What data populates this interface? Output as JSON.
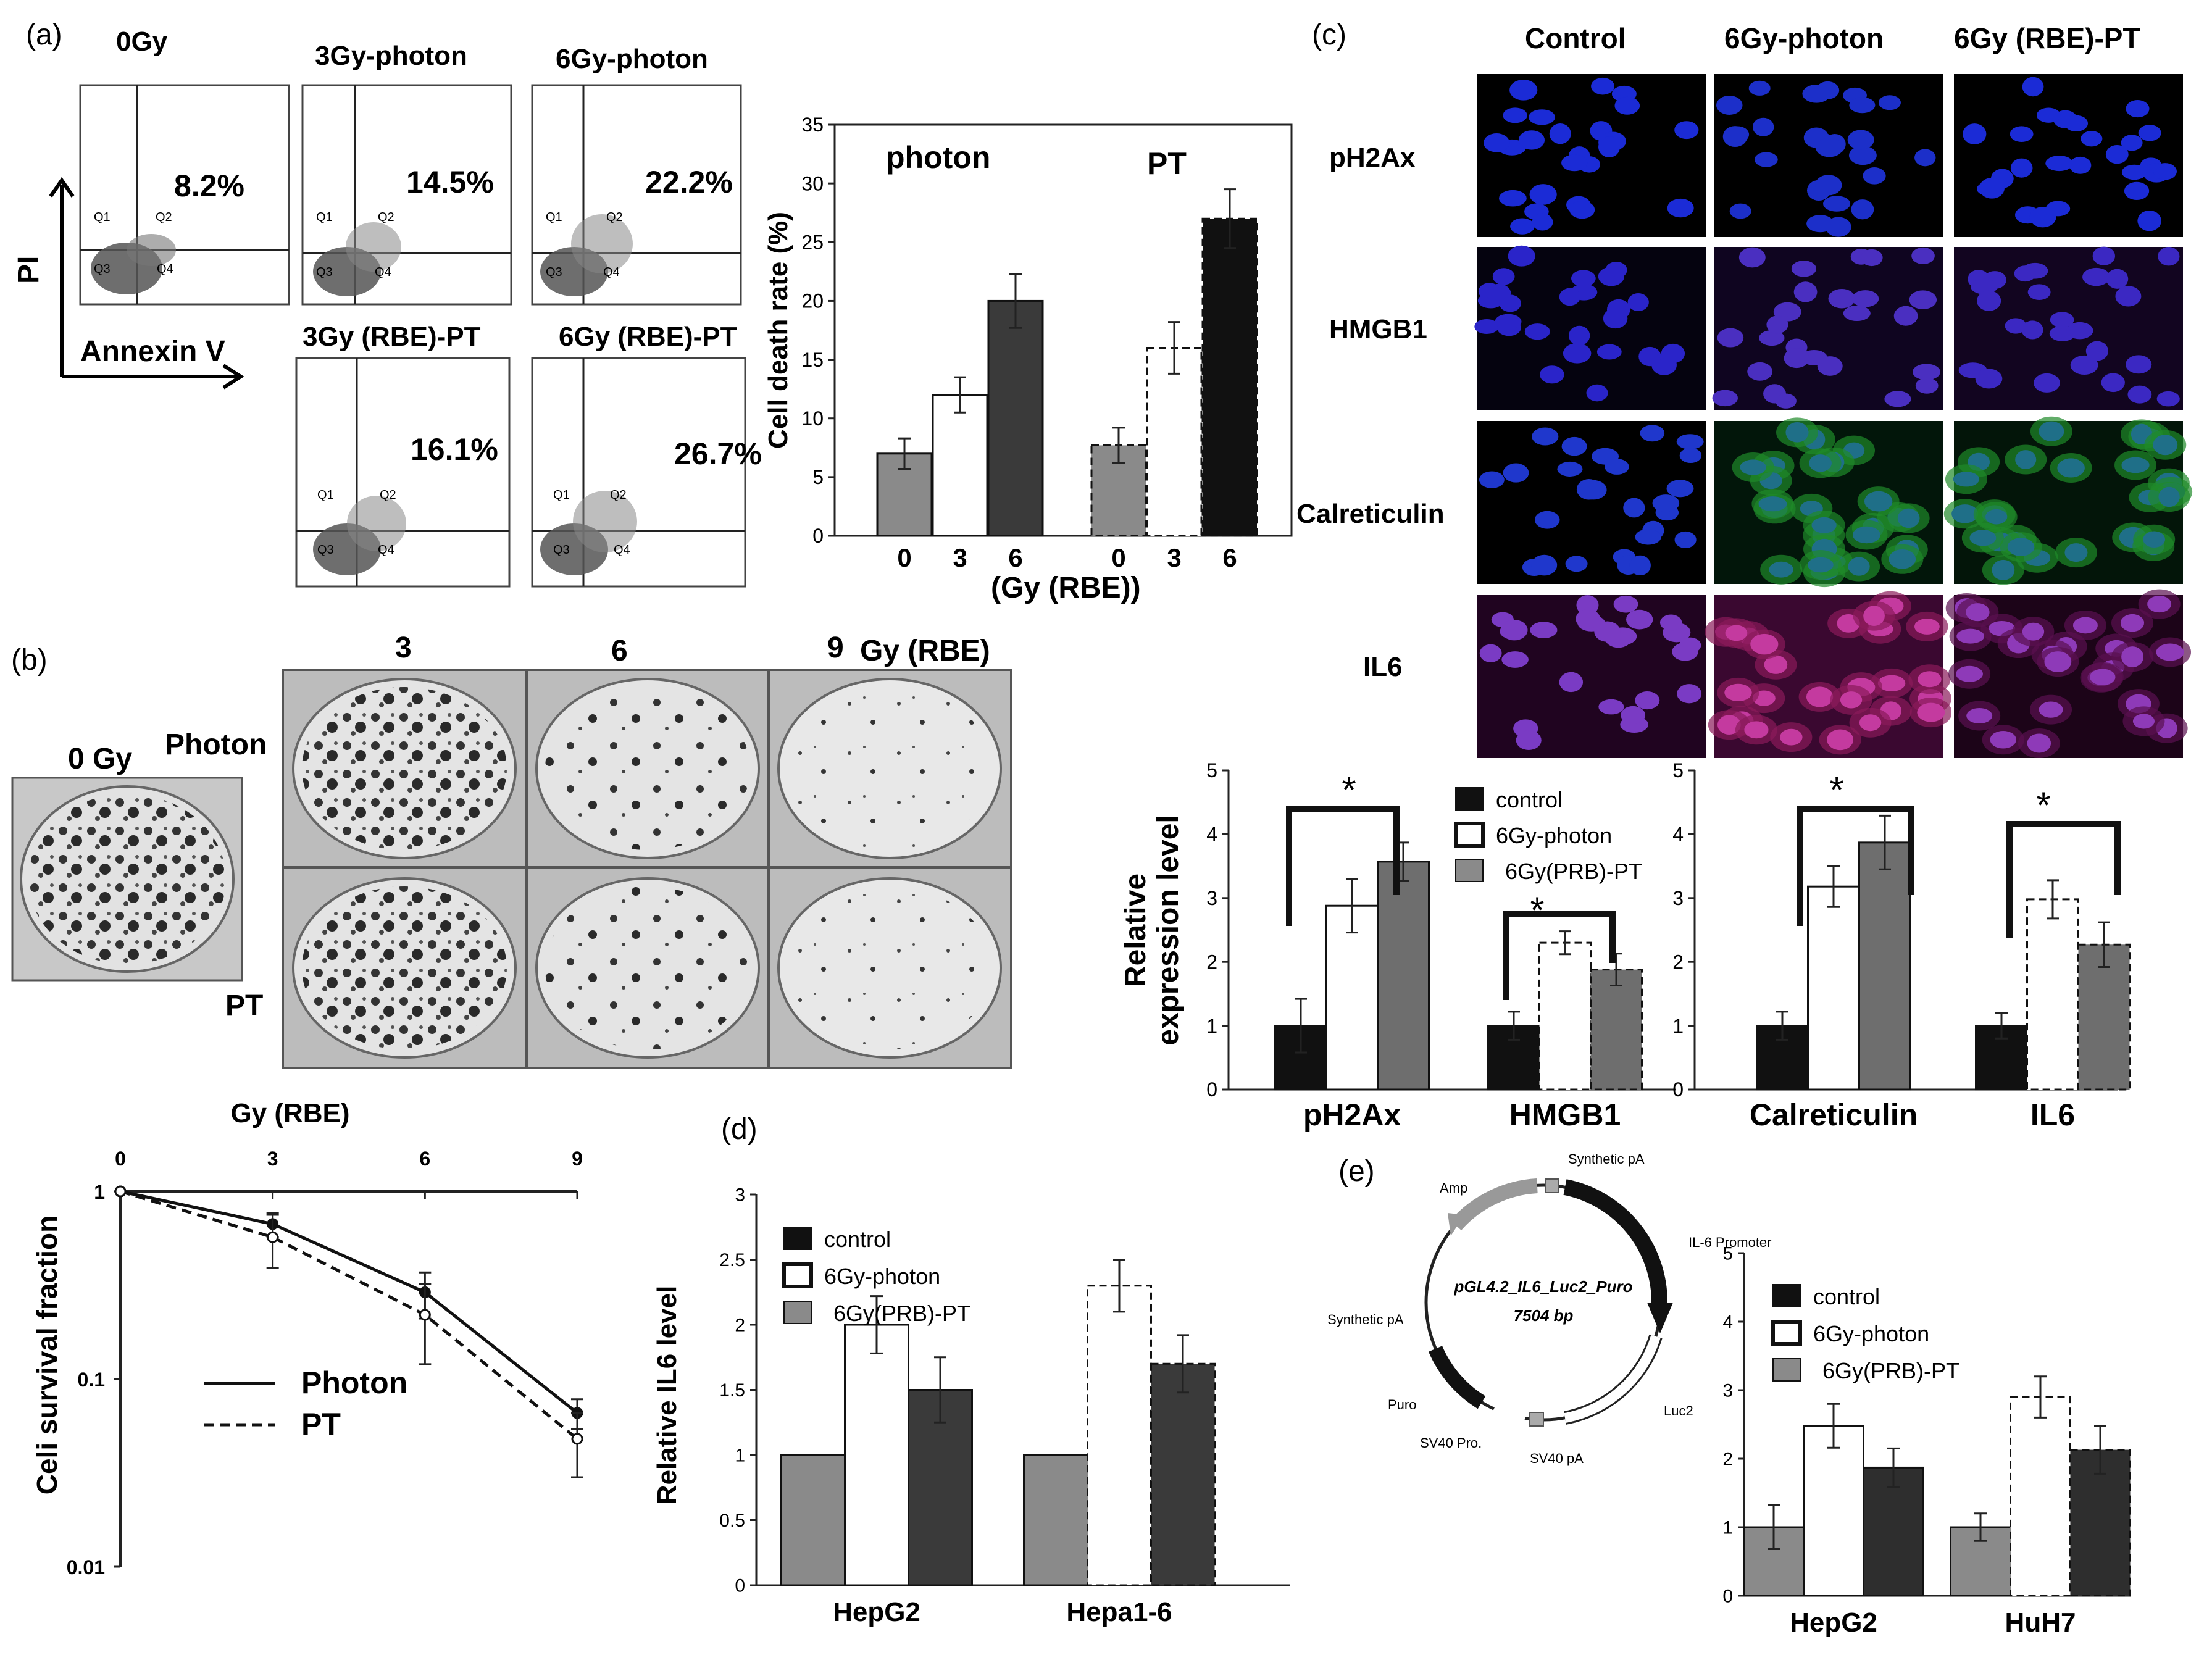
{
  "figure": {
    "panel_a": {
      "label": "(a)",
      "plots": [
        {
          "title": "0Gy",
          "percent": "8.2%"
        },
        {
          "title": "3Gy-photon",
          "percent": "14.5%"
        },
        {
          "title": "6Gy-photon",
          "percent": "22.2%"
        },
        {
          "title": "3Gy (RBE)-PT",
          "percent": "16.1%"
        },
        {
          "title": "6Gy (RBE)-PT",
          "percent": "26.7%"
        }
      ],
      "quadrants": [
        "Q1",
        "Q2",
        "Q3",
        "Q4"
      ],
      "axis_y": "PI",
      "axis_x": "Annexin V"
    },
    "panel_b": {
      "label": "(b)",
      "zero_label": "0 Gy",
      "col_labels": [
        "3",
        "6",
        "9",
        "Gy (RBE)"
      ],
      "row_labels": [
        "Photon",
        "PT"
      ]
    },
    "panel_c": {
      "label": "(c)",
      "col_labels": [
        "Control",
        "6Gy-photon",
        "6Gy (RBE)-PT"
      ],
      "row_labels": [
        "pH2Ax",
        "HMGB1",
        "Calreticulin",
        "IL6"
      ]
    },
    "panel_d": {
      "label": "(d)"
    },
    "panel_e": {
      "label": "(e)",
      "plasmid": {
        "name": "pGL4.2_IL6_Luc2_Puro",
        "size": "7504 bp",
        "features": [
          "Amp",
          "Synthetic pA",
          "IL-6 Promoter",
          "Synthetic pA",
          "Puro",
          "SV40 Pro.",
          "SV40 pA",
          "Luc2"
        ]
      }
    }
  },
  "colors": {
    "light_gray": "#8a8a8a",
    "dark_gray": "#3a3a3a",
    "black": "#111111",
    "white": "#ffffff"
  },
  "chart_data": [
    {
      "id": "cell_death",
      "type": "bar",
      "ylabel": "Cell death rate (%)",
      "xlabel": "(Gy (RBE))",
      "ylim": [
        0,
        35
      ],
      "yticks": [
        "0",
        "5",
        "10",
        "15",
        "20",
        "25",
        "30",
        "35"
      ],
      "group_labels": [
        "photon",
        "PT"
      ],
      "categories": [
        "0",
        "3",
        "6",
        "0",
        "3",
        "6"
      ],
      "values": [
        7,
        12,
        20,
        7.7,
        16,
        27
      ],
      "errors": [
        1.3,
        1.5,
        2.3,
        1.5,
        2.2,
        2.5
      ]
    },
    {
      "id": "expr_left",
      "type": "bar",
      "ylabel": "Relative expression level",
      "ylim": [
        0,
        5
      ],
      "yticks": [
        "0",
        "1",
        "2",
        "3",
        "4",
        "5"
      ],
      "categories": [
        "pH2Ax",
        "HMGB1"
      ],
      "legend": [
        "control",
        "6Gy-photon",
        "6Gy(PRB)-PT"
      ],
      "series": [
        {
          "name": "control",
          "values": [
            1.0,
            1.0
          ],
          "errors": [
            0.42,
            0.22
          ]
        },
        {
          "name": "6Gy-photon",
          "values": [
            2.88,
            2.3
          ],
          "errors": [
            0.42,
            0.18
          ]
        },
        {
          "name": "6Gy(PRB)-PT",
          "values": [
            3.57,
            1.88
          ],
          "errors": [
            0.3,
            0.25
          ]
        }
      ],
      "significance": [
        "*",
        "*"
      ]
    },
    {
      "id": "expr_right",
      "type": "bar",
      "ylim": [
        0,
        5
      ],
      "yticks": [
        "0",
        "1",
        "2",
        "3",
        "4",
        "5"
      ],
      "categories": [
        "Calreticulin",
        "IL6"
      ],
      "series": [
        {
          "name": "control",
          "values": [
            1.0,
            1.0
          ],
          "errors": [
            0.22,
            0.2
          ]
        },
        {
          "name": "6Gy-photon",
          "values": [
            3.18,
            2.98
          ],
          "errors": [
            0.32,
            0.3
          ]
        },
        {
          "name": "6Gy(PRB)-PT",
          "values": [
            3.87,
            2.27
          ],
          "errors": [
            0.42,
            0.35
          ]
        }
      ],
      "significance": [
        "*",
        "*"
      ]
    },
    {
      "id": "survival",
      "type": "line",
      "title": "Gy (RBE)",
      "ylabel": "Celi survival fraction",
      "x": [
        0,
        3,
        6,
        9
      ],
      "xticks": [
        "0",
        "3",
        "6",
        "9"
      ],
      "yticks": [
        "1",
        "0.1",
        "0.01"
      ],
      "yscale": "log",
      "ylim": [
        0.01,
        1
      ],
      "series": [
        {
          "name": "Photon",
          "values": [
            1.0,
            0.67,
            0.29,
            0.066
          ],
          "errors": [
            0.1,
            0.1,
            0.08,
            0.012
          ]
        },
        {
          "name": "PT",
          "values": [
            1.0,
            0.57,
            0.22,
            0.048
          ],
          "errors": [
            0.1,
            0.18,
            0.1,
            0.018
          ]
        }
      ]
    },
    {
      "id": "il6_level",
      "type": "bar",
      "ylabel": "Relative IL6 level",
      "ylim": [
        0,
        3
      ],
      "yticks": [
        "0",
        "0.5",
        "1",
        "1.5",
        "2",
        "2.5",
        "3"
      ],
      "categories": [
        "HepG2",
        "Hepa1-6"
      ],
      "legend": [
        "control",
        "6Gy-photon",
        "6Gy(PRB)-PT"
      ],
      "series": [
        {
          "name": "control",
          "values": [
            1.0,
            1.0
          ],
          "errors": [
            0,
            0
          ]
        },
        {
          "name": "6Gy-photon",
          "values": [
            2.0,
            2.3
          ],
          "errors": [
            0.22,
            0.2
          ]
        },
        {
          "name": "6Gy(PRB)-PT",
          "values": [
            1.5,
            1.7
          ],
          "errors": [
            0.25,
            0.22
          ]
        }
      ]
    },
    {
      "id": "reporter",
      "type": "bar",
      "ylim": [
        0,
        5
      ],
      "yticks": [
        "0",
        "1",
        "2",
        "3",
        "4",
        "5"
      ],
      "categories": [
        "HepG2",
        "HuH7"
      ],
      "legend": [
        "control",
        "6Gy-photon",
        "6Gy(PRB)-PT"
      ],
      "series": [
        {
          "name": "control",
          "values": [
            1.0,
            1.0
          ],
          "errors": [
            0.32,
            0.2
          ]
        },
        {
          "name": "6Gy-photon",
          "values": [
            2.48,
            2.9
          ],
          "errors": [
            0.32,
            0.3
          ]
        },
        {
          "name": "6Gy(PRB)-PT",
          "values": [
            1.87,
            2.13
          ],
          "errors": [
            0.28,
            0.35
          ]
        }
      ]
    }
  ]
}
